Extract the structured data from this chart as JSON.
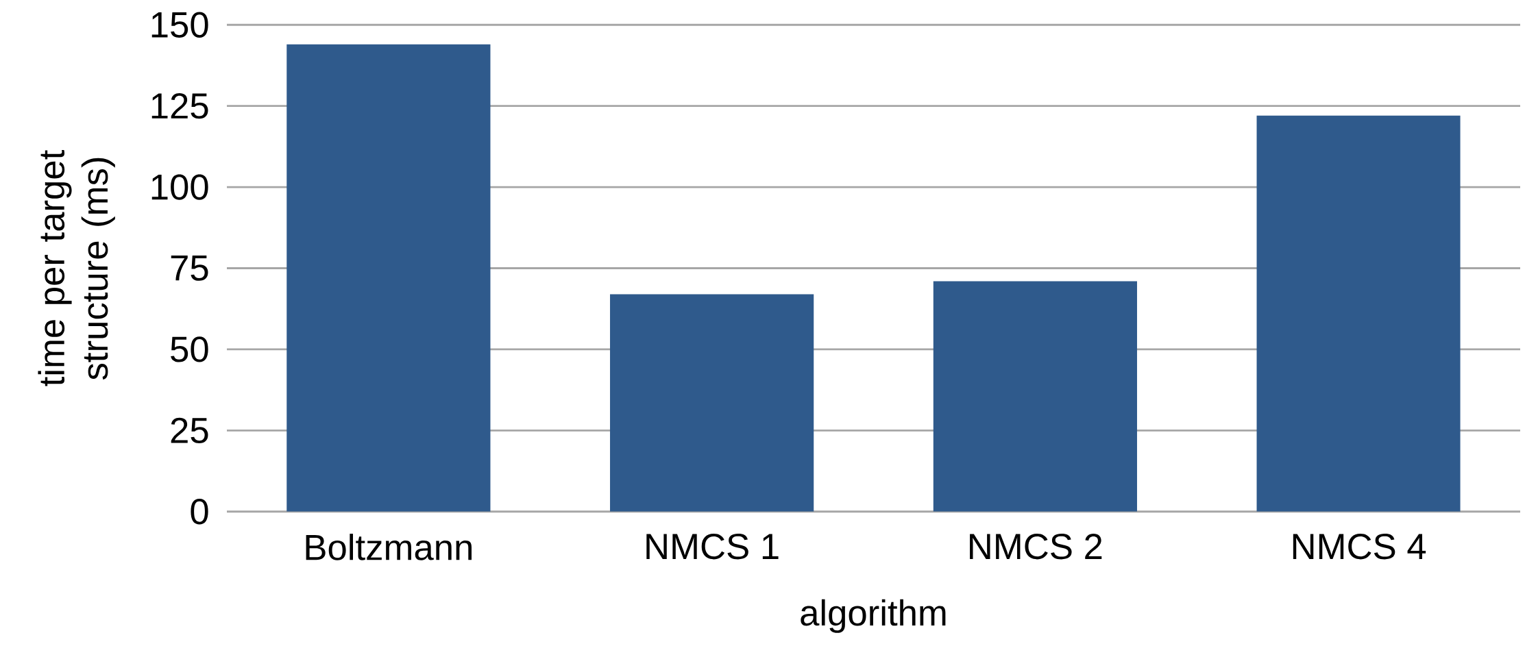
{
  "chart_data": {
    "type": "bar",
    "xlabel": "algorithm",
    "ylabel": "time per target structure (ms)",
    "categories": [
      "Boltzmann",
      "NMCS 1",
      "NMCS 2",
      "NMCS 4"
    ],
    "values": [
      144,
      67,
      71,
      122
    ],
    "color": "#2f5a8c",
    "ylim": [
      0,
      150
    ],
    "yticks": [
      0,
      25,
      50,
      75,
      100,
      125,
      150
    ],
    "grid": "y"
  }
}
